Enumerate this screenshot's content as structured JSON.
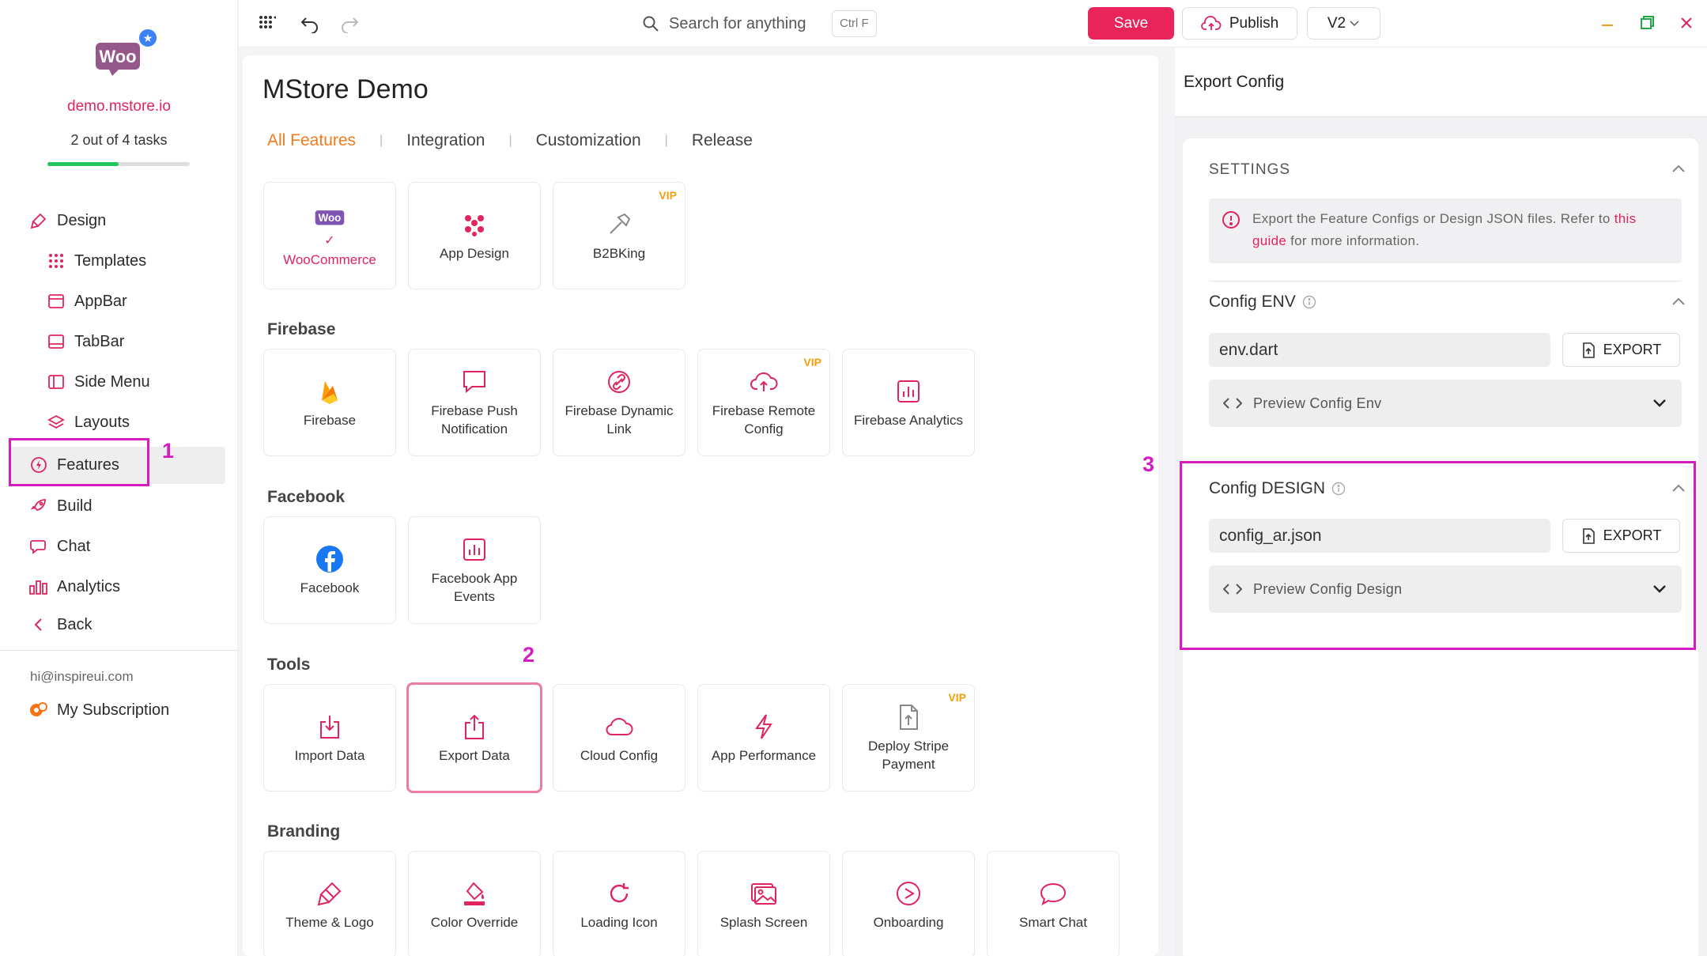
{
  "sidebar": {
    "store_url": "demo.mstore.io",
    "tasks": "2 out of 4 tasks",
    "task_progress": 0.5,
    "logo_text": "Woo",
    "nav": {
      "design": "Design",
      "templates": "Templates",
      "appbar": "AppBar",
      "tabbar": "TabBar",
      "side_menu": "Side Menu",
      "layouts": "Layouts",
      "features": "Features",
      "build": "Build",
      "chat": "Chat",
      "analytics": "Analytics",
      "back": "Back"
    },
    "user_email": "hi@inspireui.com",
    "subscription": "My Subscription"
  },
  "topbar": {
    "search_placeholder": "Search for anything",
    "search_shortcut": "Ctrl F",
    "save": "Save",
    "publish": "Publish",
    "version": "V2"
  },
  "main": {
    "title": "MStore Demo",
    "tabs": [
      "All Features",
      "Integration",
      "Customization",
      "Release"
    ],
    "sections": {
      "firebase": "Firebase",
      "facebook": "Facebook",
      "tools": "Tools",
      "branding": "Branding"
    },
    "cards": {
      "woocommerce": "WooCommerce",
      "app_design": "App Design",
      "b2bking": "B2BKing",
      "firebase": "Firebase",
      "firebase_push": "Firebase Push Notification",
      "firebase_dynamic": "Firebase Dynamic Link",
      "firebase_remote": "Firebase Remote Config",
      "firebase_analytics": "Firebase Analytics",
      "facebook": "Facebook",
      "facebook_events": "Facebook App Events",
      "import_data": "Import Data",
      "export_data": "Export Data",
      "cloud_config": "Cloud Config",
      "app_performance": "App Performance",
      "deploy_stripe": "Deploy Stripe Payment",
      "theme_logo": "Theme & Logo",
      "color_override": "Color Override",
      "loading_icon": "Loading Icon",
      "splash_screen": "Splash Screen",
      "onboarding": "Onboarding",
      "smart_chat": "Smart Chat"
    },
    "vip_badge": "VIP"
  },
  "export_panel": {
    "title": "Export Config",
    "settings_heading": "SETTINGS",
    "info_text_1": "Export the Feature Configs or Design JSON files. Refer to",
    "info_link": "this guide",
    "info_text_2": "for more information.",
    "env_label": "Config ENV",
    "env_value": "env.dart",
    "export_label": "EXPORT",
    "preview_env": "Preview Config Env",
    "design_label": "Config DESIGN",
    "design_value": "config_ar.json",
    "preview_design": "Preview Config Design"
  },
  "annotations": {
    "step1": "1",
    "step2": "2",
    "step3": "3"
  },
  "colors": {
    "accent_pink": "#e8245a",
    "tab_active": "#f07c1e",
    "annotation": "#d41cc3",
    "progress": "#22c55e",
    "vip": "#f59e0b"
  }
}
